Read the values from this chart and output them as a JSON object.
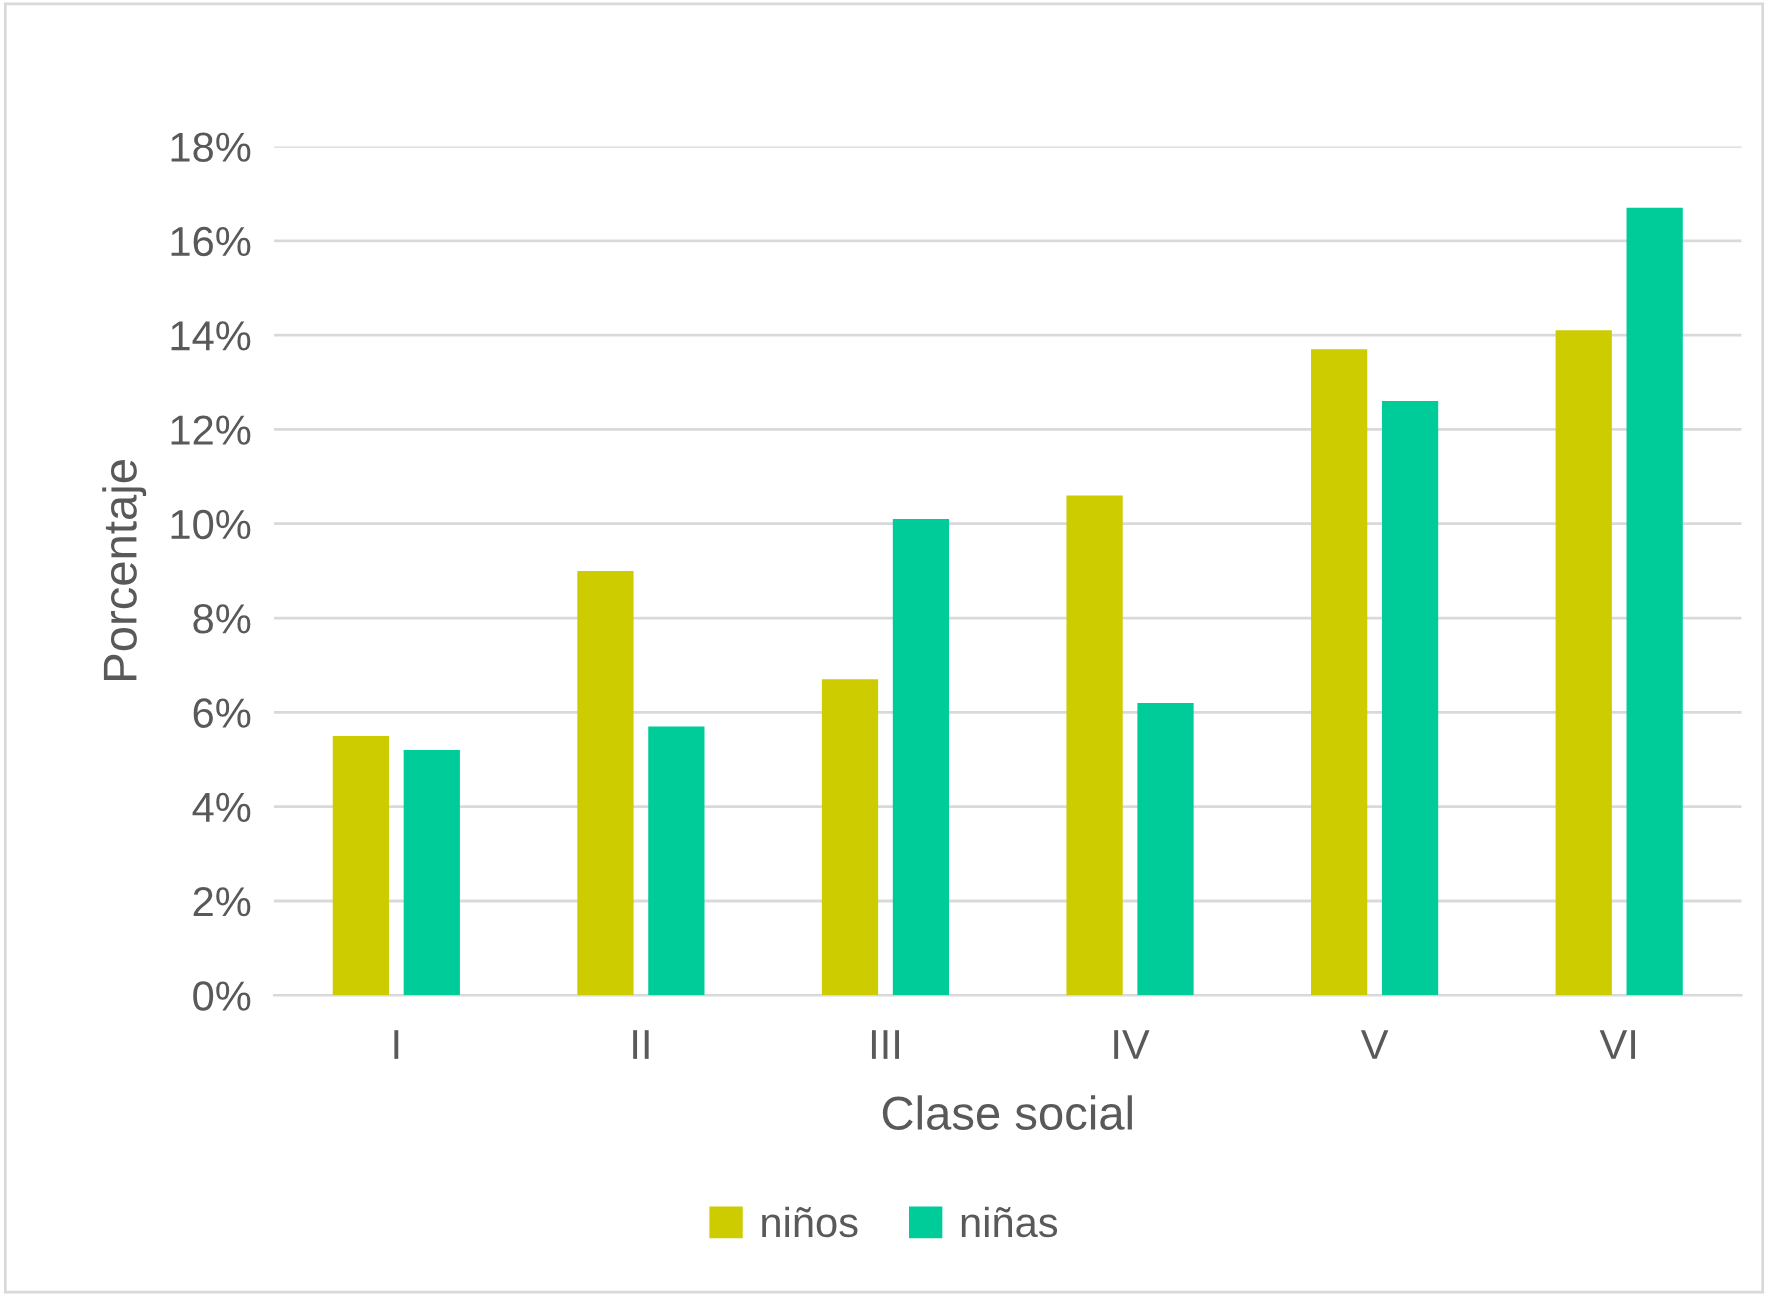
{
  "chart_data": {
    "type": "bar",
    "xlabel": "Clase social",
    "ylabel": "Porcentaje",
    "categories": [
      "I",
      "II",
      "III",
      "IV",
      "V",
      "VI"
    ],
    "series": [
      {
        "name": "niños",
        "color": "#cccc00",
        "values": [
          5.5,
          9.0,
          6.7,
          10.6,
          13.7,
          14.1
        ]
      },
      {
        "name": "niñas",
        "color": "#00cc99",
        "values": [
          5.2,
          5.7,
          10.1,
          6.2,
          12.6,
          16.7
        ]
      }
    ],
    "ylim": [
      0,
      18
    ],
    "yticks": [
      {
        "value": 0,
        "label": "0%"
      },
      {
        "value": 2,
        "label": "2%"
      },
      {
        "value": 4,
        "label": "4%"
      },
      {
        "value": 6,
        "label": "6%"
      },
      {
        "value": 8,
        "label": "8%"
      },
      {
        "value": 10,
        "label": "10%"
      },
      {
        "value": 12,
        "label": "12%"
      },
      {
        "value": 14,
        "label": "14%"
      },
      {
        "value": 16,
        "label": "16%"
      },
      {
        "value": 18,
        "label": "18%"
      }
    ],
    "grid": "y",
    "legend": "bottom"
  }
}
